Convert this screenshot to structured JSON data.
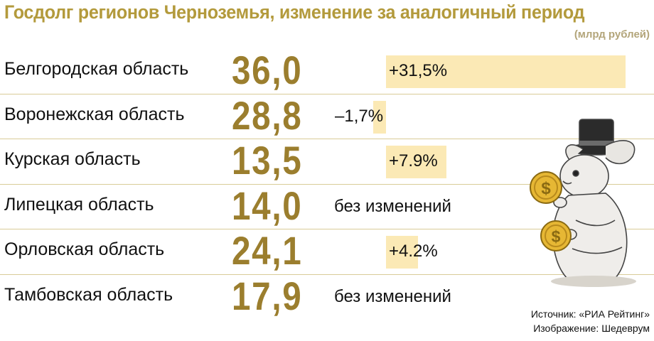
{
  "header": {
    "title": "Госдолг регионов Черноземья, изменение за аналогичный период",
    "units": "(млрд рублей)"
  },
  "chart_data": {
    "type": "bar",
    "title": "Госдолг регионов Черноземья, изменение за аналогичный период",
    "ylabel": "(млрд рублей)",
    "categories": [
      "Белгородская область",
      "Воронежская область",
      "Курская область",
      "Липецкая область",
      "Орловская область",
      "Тамбовская область"
    ],
    "values": [
      36.0,
      28.8,
      13.5,
      14.0,
      24.1,
      17.9
    ],
    "value_labels": [
      "36,0",
      "28,8",
      "13,5",
      "14,0",
      "24,1",
      "17,9"
    ],
    "series": [
      {
        "name": "Изменение за аналогичный период, %",
        "values": [
          31.5,
          -1.7,
          7.9,
          0,
          4.2,
          0
        ]
      }
    ],
    "change_labels": [
      "+31,5%",
      "–1,7%",
      "+7.9%",
      "без изменений",
      "+4.2%",
      "без изменений"
    ],
    "highlight_color": "#fbe9b5",
    "value_color": "#9b7e2e"
  },
  "footer": {
    "source": "Источник: «РИА Рейтинг»",
    "image_credit": "Изображение: Шедеврум"
  },
  "colors": {
    "title": "#b39a3c",
    "divider": "#d9cc98"
  }
}
